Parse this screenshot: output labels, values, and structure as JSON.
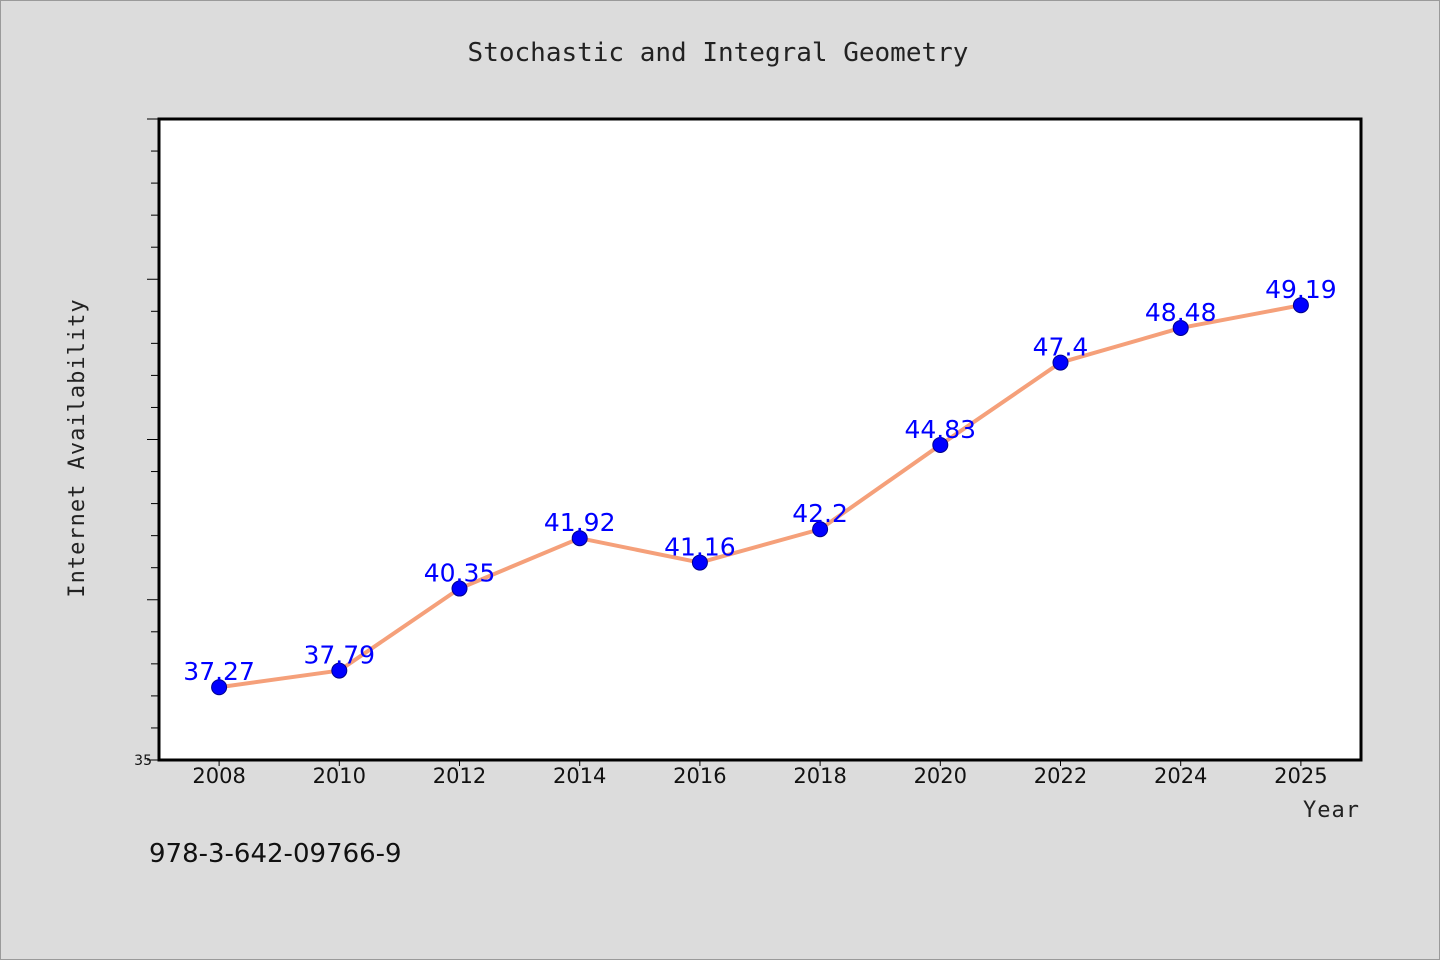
{
  "chart_data": {
    "type": "line",
    "title": "Stochastic and Integral Geometry",
    "xlabel": "Year",
    "ylabel": "Internet Availability",
    "x": [
      2008,
      2010,
      2012,
      2014,
      2016,
      2018,
      2020,
      2022,
      2024,
      2025
    ],
    "xticks": [
      "2008",
      "2010",
      "2012",
      "2014",
      "2016",
      "2018",
      "2020",
      "2022",
      "2024",
      "2025"
    ],
    "series": [
      {
        "values": [
          37.27,
          37.79,
          40.35,
          41.92,
          41.16,
          42.2,
          44.83,
          47.4,
          48.48,
          49.19
        ],
        "labels": [
          "37.27",
          "37.79",
          "40.35",
          "41.92",
          "41.16",
          "42.2",
          "44.83",
          "47.4",
          "48.48",
          "49.19"
        ],
        "line_color": "#f5a07a",
        "marker_color": "#0000ff"
      }
    ],
    "ylim": [
      35,
      55
    ],
    "ytick_labels": [
      "35"
    ],
    "grid": false,
    "legend": "none"
  },
  "annotation": "978-3-642-09766-9",
  "colors": {
    "background": "#dcdcdc",
    "plot_background": "#ffffff",
    "line": "#f5a07a",
    "marker": "#0000ff",
    "data_label": "#0000ff"
  }
}
